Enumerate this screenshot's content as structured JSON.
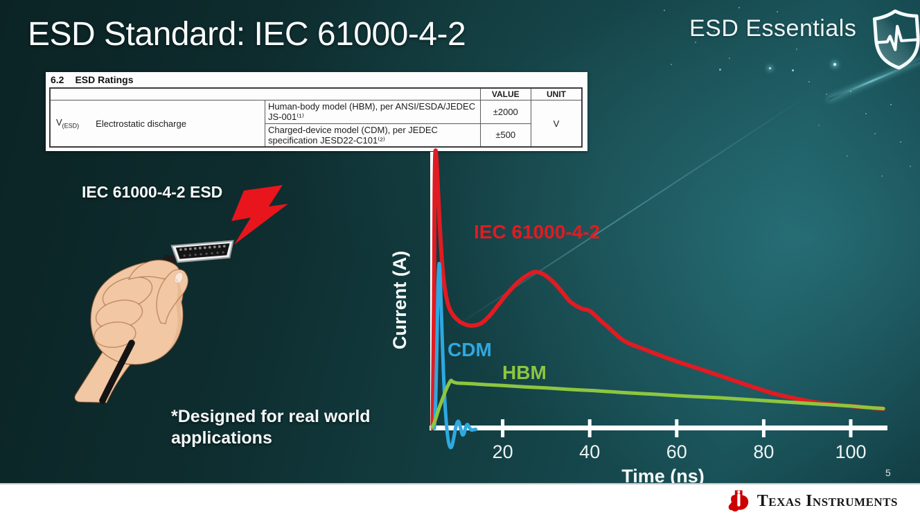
{
  "slide": {
    "title": "ESD Standard: IEC 61000-4-2",
    "page_number": "5"
  },
  "brand": {
    "label": "ESD Essentials"
  },
  "ratings_table": {
    "heading_number": "6.2",
    "heading_text": "ESD Ratings",
    "col_value": "VALUE",
    "col_unit": "UNIT",
    "symbol": "V",
    "symbol_sub": "(ESD)",
    "row_label": "Electrostatic discharge",
    "rows": [
      {
        "description": "Human-body model (HBM), per ANSI/ESDA/JEDEC JS-001⁽¹⁾",
        "value": "±2000"
      },
      {
        "description": "Charged-device model (CDM), per JEDEC specification JESD22-C101⁽²⁾",
        "value": "±500"
      }
    ],
    "unit": "V"
  },
  "illustration": {
    "label": "IEC 61000-4-2 ESD"
  },
  "footnote": {
    "text": "*Designed for real world applications"
  },
  "footer": {
    "brand_name": "Texas Instruments"
  },
  "colors": {
    "iec_red": "#e11b22",
    "cdm_blue": "#2fa8e0",
    "hbm_green": "#8dc63f",
    "background_teal": "#144246",
    "axis_white": "#ffffff"
  },
  "chart_data": {
    "type": "line",
    "title": "",
    "xlabel": "Time (ns)",
    "ylabel": "Current (A)",
    "x_ticks": [
      20,
      40,
      60,
      80,
      100
    ],
    "xlim": [
      0,
      110
    ],
    "y_ticks": [],
    "y_note": "no numeric y scale shown; values normalized to IEC peak = 1.0",
    "legend_position": "inline-labels",
    "grid": false,
    "series": [
      {
        "name": "IEC 61000-4-2",
        "color": "#e11b22",
        "points": [
          [
            3.9,
            0.0
          ],
          [
            4.2,
            0.45
          ],
          [
            4.35,
            0.85
          ],
          [
            4.5,
            1.0
          ],
          [
            4.75,
            0.99
          ],
          [
            5.1,
            0.88
          ],
          [
            5.6,
            0.72
          ],
          [
            6.3,
            0.56
          ],
          [
            7.3,
            0.46
          ],
          [
            8.5,
            0.415
          ],
          [
            10,
            0.39
          ],
          [
            11.5,
            0.378
          ],
          [
            13,
            0.374
          ],
          [
            15,
            0.382
          ],
          [
            17,
            0.41
          ],
          [
            19,
            0.45
          ],
          [
            21,
            0.49
          ],
          [
            23.5,
            0.532
          ],
          [
            25.5,
            0.556
          ],
          [
            27.5,
            0.57
          ],
          [
            29.5,
            0.56
          ],
          [
            31.5,
            0.535
          ],
          [
            33.5,
            0.5
          ],
          [
            35.5,
            0.462
          ],
          [
            38,
            0.437
          ],
          [
            40,
            0.428
          ],
          [
            42,
            0.4
          ],
          [
            44,
            0.372
          ],
          [
            48,
            0.318
          ],
          [
            53,
            0.285
          ],
          [
            58,
            0.255
          ],
          [
            63,
            0.228
          ],
          [
            68,
            0.202
          ],
          [
            73,
            0.175
          ],
          [
            78,
            0.148
          ],
          [
            82,
            0.128
          ],
          [
            86,
            0.113
          ],
          [
            90,
            0.1
          ],
          [
            94,
            0.09
          ],
          [
            98,
            0.084
          ],
          [
            102,
            0.078
          ],
          [
            105,
            0.074
          ],
          [
            107.5,
            0.071
          ]
        ]
      },
      {
        "name": "CDM",
        "color": "#2fa8e0",
        "points": [
          [
            4.3,
            0.0
          ],
          [
            4.6,
            0.1
          ],
          [
            4.9,
            0.32
          ],
          [
            5.15,
            0.52
          ],
          [
            5.4,
            0.6
          ],
          [
            5.65,
            0.54
          ],
          [
            5.95,
            0.4
          ],
          [
            6.3,
            0.24
          ],
          [
            6.7,
            0.1
          ],
          [
            7.1,
            0.01
          ],
          [
            7.5,
            -0.045
          ],
          [
            7.9,
            -0.068
          ],
          [
            8.3,
            -0.066
          ],
          [
            8.7,
            -0.04
          ],
          [
            9.1,
            -0.005
          ],
          [
            9.5,
            0.02
          ],
          [
            9.9,
            0.024
          ],
          [
            10.3,
            0.002
          ],
          [
            10.7,
            -0.022
          ],
          [
            11.1,
            -0.02
          ],
          [
            11.5,
            0.004
          ],
          [
            11.9,
            0.014
          ],
          [
            12.3,
            0.004
          ],
          [
            12.8,
            -0.006
          ],
          [
            13.3,
            -0.005
          ],
          [
            13.8,
            -0.004
          ]
        ]
      },
      {
        "name": "HBM",
        "color": "#8dc63f",
        "points": [
          [
            3.8,
            0.004
          ],
          [
            4.5,
            0.03
          ],
          [
            5.2,
            0.065
          ],
          [
            6.0,
            0.1
          ],
          [
            6.8,
            0.133
          ],
          [
            7.5,
            0.158
          ],
          [
            8.1,
            0.174
          ],
          [
            8.6,
            0.169
          ],
          [
            9.5,
            0.165
          ],
          [
            11,
            0.164
          ],
          [
            13,
            0.162
          ],
          [
            16,
            0.159
          ],
          [
            20,
            0.156
          ],
          [
            25,
            0.151
          ],
          [
            30,
            0.147
          ],
          [
            35,
            0.142
          ],
          [
            40,
            0.138
          ],
          [
            45,
            0.133
          ],
          [
            50,
            0.128
          ],
          [
            55,
            0.124
          ],
          [
            60,
            0.119
          ],
          [
            65,
            0.115
          ],
          [
            70,
            0.111
          ],
          [
            75,
            0.106
          ],
          [
            80,
            0.101
          ],
          [
            85,
            0.096
          ],
          [
            90,
            0.091
          ],
          [
            95,
            0.086
          ],
          [
            100,
            0.081
          ],
          [
            103,
            0.077
          ],
          [
            105.5,
            0.074
          ],
          [
            107.5,
            0.072
          ]
        ]
      }
    ]
  }
}
